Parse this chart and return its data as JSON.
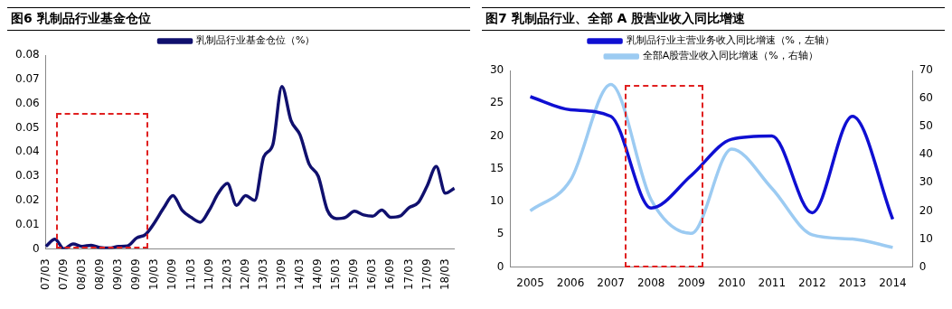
{
  "chart_data": [
    {
      "type": "line",
      "title": "图6  乳制品行业基金仓位",
      "categories": [
        "07/03",
        null,
        "07/09",
        null,
        "08/03",
        null,
        "08/09",
        null,
        "09/03",
        null,
        "09/09",
        null,
        "10/03",
        null,
        "10/09",
        null,
        "11/03",
        null,
        "11/09",
        null,
        "12/03",
        null,
        "12/09",
        null,
        "13/03",
        null,
        "13/09",
        null,
        "14/03",
        null,
        "14/09",
        null,
        "15/03",
        null,
        "15/09",
        null,
        "16/03",
        null,
        "16/09",
        null,
        "17/03",
        null,
        "17/09",
        null,
        "18/03",
        null
      ],
      "series": [
        {
          "name": "乳制品行业基金仓位（%）",
          "color": "#10106e",
          "values": [
            0.001,
            0.004,
            0.0,
            0.002,
            0.001,
            0.0015,
            0.0005,
            0.0003,
            0.001,
            0.0012,
            0.0045,
            0.006,
            0.011,
            0.017,
            0.022,
            0.016,
            0.013,
            0.011,
            0.016,
            0.023,
            0.027,
            0.018,
            0.022,
            0.02,
            0.038,
            0.043,
            0.067,
            0.053,
            0.047,
            0.035,
            0.03,
            0.016,
            0.0125,
            0.013,
            0.0155,
            0.014,
            0.0135,
            0.016,
            0.013,
            0.0135,
            0.017,
            0.019,
            0.026,
            0.034,
            0.023,
            0.025
          ]
        }
      ],
      "ylim": [
        0,
        0.08
      ],
      "yticks": [
        0,
        0.01,
        0.02,
        0.03,
        0.04,
        0.05,
        0.06,
        0.07,
        0.08
      ],
      "grid": false,
      "legend": "top",
      "marker": "none",
      "line_style": "solid"
    },
    {
      "type": "line",
      "title": "图7  乳制品行业、全部 A 股营业收入同比增速",
      "categories": [
        "2005",
        "2006",
        "2007",
        "2008",
        "2009",
        "2010",
        "2011",
        "2012",
        "2013",
        "2014"
      ],
      "series": [
        {
          "name": "乳制品行业主营业务收入同比增速（%，左轴）",
          "color": "#0f0fd2",
          "values": [
            26,
            24,
            23,
            9,
            14,
            19.5,
            20,
            8.3,
            23,
            7.3
          ]
        },
        {
          "name": "全部A股营业收入同比增速（%，右轴）",
          "color": "#9ccbf2",
          "axis": "y2",
          "values": [
            20,
            31,
            65,
            24,
            12,
            42,
            28,
            11.5,
            10,
            7
          ]
        }
      ],
      "ylim": [
        0,
        30
      ],
      "yticks": [
        0,
        5,
        10,
        15,
        20,
        25,
        30
      ],
      "y2lim": [
        0,
        70
      ],
      "y2ticks": [
        0,
        10,
        20,
        30,
        40,
        50,
        60,
        70
      ],
      "grid": false,
      "legend": "top",
      "marker": "none",
      "line_style": "solid"
    }
  ]
}
